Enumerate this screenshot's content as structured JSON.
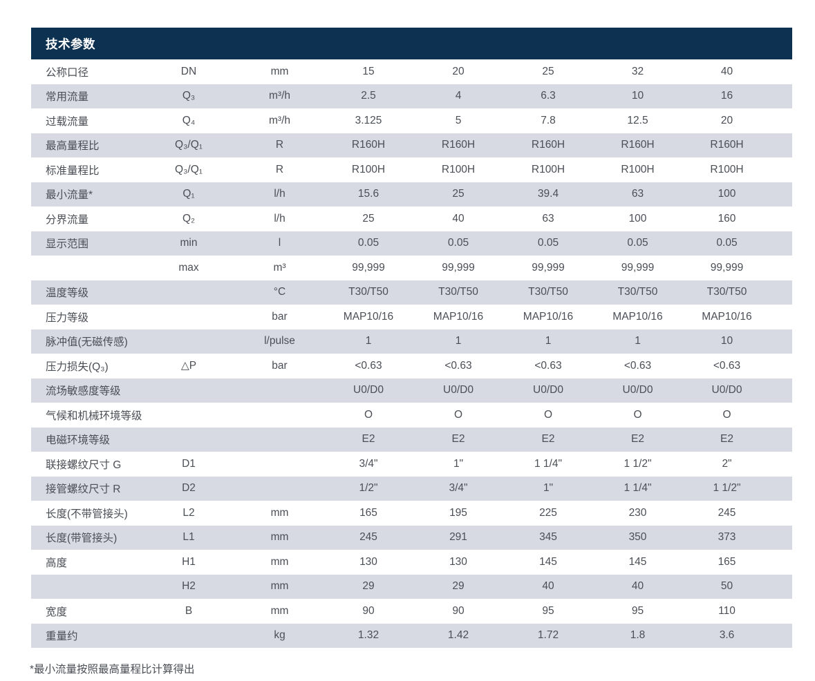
{
  "table": {
    "title": "技术参数",
    "rows": [
      {
        "label": "公称口径",
        "symbol": "DN",
        "unit": "mm",
        "values": [
          "15",
          "20",
          "25",
          "32",
          "40"
        ]
      },
      {
        "label": "常用流量",
        "symbol": "Q₃",
        "unit": "m³/h",
        "values": [
          "2.5",
          "4",
          "6.3",
          "10",
          "16"
        ]
      },
      {
        "label": "过载流量",
        "symbol": "Q₄",
        "unit": "m³/h",
        "values": [
          "3.125",
          "5",
          "7.8",
          "12.5",
          "20"
        ]
      },
      {
        "label": "最高量程比",
        "symbol": "Q₃/Q₁",
        "unit": "R",
        "values": [
          "R160H",
          "R160H",
          "R160H",
          "R160H",
          "R160H"
        ]
      },
      {
        "label": "标准量程比",
        "symbol": "Q₃/Q₁",
        "unit": "R",
        "values": [
          "R100H",
          "R100H",
          "R100H",
          "R100H",
          "R100H"
        ]
      },
      {
        "label": "最小流量*",
        "symbol": "Q₁",
        "unit": "l/h",
        "values": [
          "15.6",
          "25",
          "39.4",
          "63",
          "100"
        ]
      },
      {
        "label": "分界流量",
        "symbol": "Q₂",
        "unit": "l/h",
        "values": [
          "25",
          "40",
          "63",
          "100",
          "160"
        ]
      },
      {
        "label": "显示范围",
        "symbol": "min",
        "unit": "l",
        "values": [
          "0.05",
          "0.05",
          "0.05",
          "0.05",
          "0.05"
        ]
      },
      {
        "label": "",
        "symbol": "max",
        "unit": "m³",
        "values": [
          "99,999",
          "99,999",
          "99,999",
          "99,999",
          "99,999"
        ]
      },
      {
        "label": "温度等级",
        "symbol": "",
        "unit": "°C",
        "values": [
          "T30/T50",
          "T30/T50",
          "T30/T50",
          "T30/T50",
          "T30/T50"
        ]
      },
      {
        "label": "压力等级",
        "symbol": "",
        "unit": "bar",
        "values": [
          "MAP10/16",
          "MAP10/16",
          "MAP10/16",
          "MAP10/16",
          "MAP10/16"
        ]
      },
      {
        "label": "脉冲值(无磁传感)",
        "symbol": "",
        "unit": "l/pulse",
        "values": [
          "1",
          "1",
          "1",
          "1",
          "10"
        ]
      },
      {
        "label": "压力损失(Q₃)",
        "symbol": "△P",
        "unit": "bar",
        "values": [
          "<0.63",
          "<0.63",
          "<0.63",
          "<0.63",
          "<0.63"
        ]
      },
      {
        "label": "流场敏感度等级",
        "symbol": "",
        "unit": "",
        "values": [
          "U0/D0",
          "U0/D0",
          "U0/D0",
          "U0/D0",
          "U0/D0"
        ]
      },
      {
        "label": "气候和机械环境等级",
        "symbol": "",
        "unit": "",
        "values": [
          "O",
          "O",
          "O",
          "O",
          "O"
        ]
      },
      {
        "label": "电磁环境等级",
        "symbol": "",
        "unit": "",
        "values": [
          "E2",
          "E2",
          "E2",
          "E2",
          "E2"
        ]
      },
      {
        "label": "联接螺纹尺寸 G",
        "symbol": "D1",
        "unit": "",
        "values": [
          "3/4\"",
          "1\"",
          "1 1/4\"",
          "1 1/2\"",
          "2\""
        ]
      },
      {
        "label": "接管螺纹尺寸 R",
        "symbol": "D2",
        "unit": "",
        "values": [
          "1/2\"",
          "3/4\"",
          "1\"",
          "1 1/4\"",
          "1 1/2\""
        ]
      },
      {
        "label": "长度(不带管接头)",
        "symbol": "L2",
        "unit": "mm",
        "values": [
          "165",
          "195",
          "225",
          "230",
          "245"
        ]
      },
      {
        "label": "长度(带管接头)",
        "symbol": "L1",
        "unit": "mm",
        "values": [
          "245",
          "291",
          "345",
          "350",
          "373"
        ]
      },
      {
        "label": "高度",
        "symbol": "H1",
        "unit": "mm",
        "values": [
          "130",
          "130",
          "145",
          "145",
          "165"
        ]
      },
      {
        "label": "",
        "symbol": "H2",
        "unit": "mm",
        "values": [
          "29",
          "29",
          "40",
          "40",
          "50"
        ]
      },
      {
        "label": "宽度",
        "symbol": "B",
        "unit": "mm",
        "values": [
          "90",
          "90",
          "95",
          "95",
          "110"
        ]
      },
      {
        "label": "重量约",
        "symbol": "",
        "unit": "kg",
        "values": [
          "1.32",
          "1.42",
          "1.72",
          "1.8",
          "3.6"
        ]
      }
    ]
  },
  "footnote": "*最小流量按照最高量程比计算得出",
  "colors": {
    "header_bg": "#0d3150",
    "header_text": "#ffffff",
    "stripe": "#d8dae3",
    "text": "#4a4e55",
    "page_bg": "#ffffff"
  }
}
